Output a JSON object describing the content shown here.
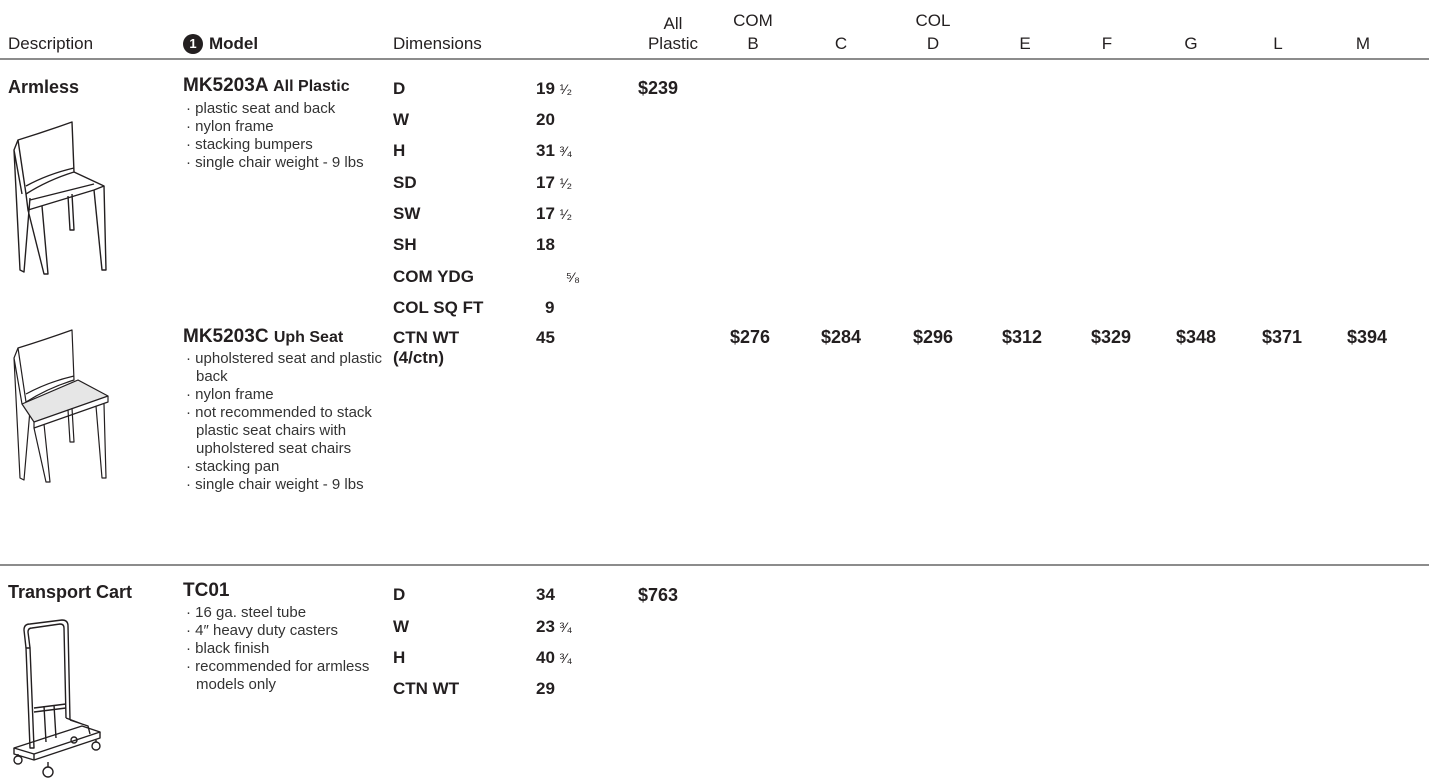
{
  "header": {
    "description": "Description",
    "model_badge": "1",
    "model": "Model",
    "dimensions": "Dimensions",
    "all_plastic_1": "All",
    "all_plastic_2": "Plastic",
    "com": "COM",
    "col": "COL",
    "grades": [
      "B",
      "C",
      "D",
      "E",
      "F",
      "G",
      "L",
      "M"
    ]
  },
  "section1": {
    "description": "Armless",
    "model_a": {
      "code": "MK5203A",
      "name": "All Plastic",
      "bullets": [
        "· plastic seat and back",
        "· nylon frame",
        "· stacking bumpers",
        "· single chair weight - 9 lbs"
      ],
      "all_plastic_price": "$239"
    },
    "model_c": {
      "code": "MK5203C",
      "name": "Uph Seat",
      "bullets": [
        "· upholstered seat and plastic back",
        "· nylon frame",
        "· not recommended to stack plastic seat chairs with upholstered seat chairs",
        "· stacking pan",
        "· single chair weight - 9 lbs"
      ],
      "prices": [
        "$276",
        "$284",
        "$296",
        "$312",
        "$329",
        "$348",
        "$371",
        "$394"
      ]
    },
    "dims": [
      {
        "label": "D",
        "whole": "19",
        "frac": "1/2"
      },
      {
        "label": "W",
        "whole": "20",
        "frac": ""
      },
      {
        "label": "H",
        "whole": "31",
        "frac": "3/4"
      },
      {
        "label": "SD",
        "whole": "17",
        "frac": "1/2"
      },
      {
        "label": "SW",
        "whole": "17",
        "frac": "1/2"
      },
      {
        "label": "SH",
        "whole": "18",
        "frac": ""
      },
      {
        "label": "COM YDG",
        "whole": "",
        "frac": "5/8"
      },
      {
        "label": "COL SQ FT",
        "whole": "9",
        "frac": ""
      },
      {
        "label": "CTN WT",
        "whole": "45",
        "frac": ""
      }
    ],
    "ctn_note": "(4/ctn)"
  },
  "section2": {
    "description": "Transport Cart",
    "code": "TC01",
    "bullets": [
      "· 16 ga. steel tube",
      "· 4″ heavy duty casters",
      "· black finish",
      "· recommended for armless models only"
    ],
    "dims": [
      {
        "label": "D",
        "whole": "34",
        "frac": ""
      },
      {
        "label": "W",
        "whole": "23",
        "frac": "3/4"
      },
      {
        "label": "H",
        "whole": "40",
        "frac": "3/4"
      },
      {
        "label": "CTN WT",
        "whole": "29",
        "frac": ""
      }
    ],
    "all_plastic_price": "$763"
  },
  "icons": {
    "chair_plastic": "chair-plastic-icon",
    "chair_upholstered": "chair-upholstered-icon",
    "cart": "transport-cart-icon"
  }
}
